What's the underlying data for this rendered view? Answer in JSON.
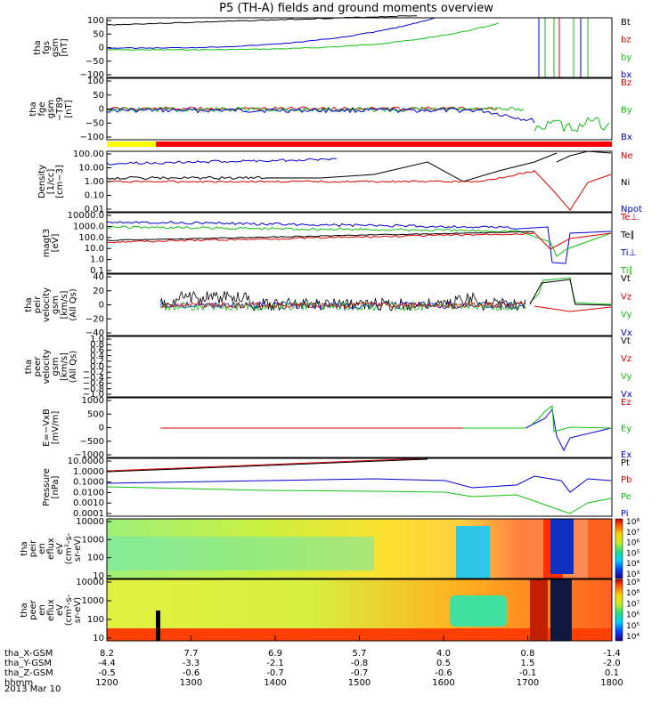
{
  "title": "P5 (TH-A) fields and ground moments overview",
  "date_label": "2013 Mar 10",
  "orbit_rows": [
    {
      "name": "tha_X-GSM",
      "values": [
        "8.2",
        "7.7",
        "6.9",
        "5.7",
        "4.0",
        "0.8",
        "-1.4"
      ]
    },
    {
      "name": "tha_Y-GSM",
      "values": [
        "-4.4",
        "-3.3",
        "-2.1",
        "-0.8",
        "0.5",
        "1.5",
        "-2.0"
      ]
    },
    {
      "name": "tha_Z-GSM",
      "values": [
        "-0.5",
        "-0.6",
        "-0.7",
        "-0.7",
        "-0.6",
        "-0.1",
        "0.1"
      ]
    },
    {
      "name": "hhmm",
      "values": [
        "1200",
        "1300",
        "1400",
        "1500",
        "1600",
        "1700",
        "1800"
      ]
    }
  ],
  "colors": {
    "black": "#000000",
    "red": "#e00000",
    "green": "#10c010",
    "blue": "#0000d0",
    "yellow": "#ffff00"
  },
  "chart_data": [
    {
      "type": "line",
      "panel": "fgs",
      "ylabel": [
        "tha",
        "fgs",
        "gsm",
        "[nT]"
      ],
      "yticks": [
        "100",
        "50",
        "0",
        "−50",
        "−100"
      ],
      "ylim": [
        -100,
        100
      ],
      "series": [
        {
          "name": "Bt",
          "color": "black"
        },
        {
          "name": "bz",
          "color": "red"
        },
        {
          "name": "by",
          "color": "green"
        },
        {
          "name": "bx",
          "color": "blue"
        }
      ]
    },
    {
      "type": "line",
      "panel": "fge",
      "ylabel": [
        "tha",
        "fge",
        "gsm",
        "−T89",
        "[nT]"
      ],
      "yticks": [
        "100",
        "50",
        "0",
        "−50",
        "−100"
      ],
      "ylim": [
        -120,
        120
      ],
      "series": [
        {
          "name": "Bz",
          "color": "red"
        },
        {
          "name": "By",
          "color": "green"
        },
        {
          "name": "Bx",
          "color": "blue"
        }
      ]
    },
    {
      "type": "line",
      "panel": "density",
      "scale": "log",
      "ylabel": [
        "Density",
        "[1/cc]",
        "[cm−3]"
      ],
      "yticks": [
        "100.00",
        "10.00",
        "1.00",
        "0.10",
        "0.01"
      ],
      "series": [
        {
          "name": "Ne",
          "color": "red"
        },
        {
          "name": "Ni",
          "color": "black"
        },
        {
          "name": "Npot",
          "color": "blue"
        }
      ]
    },
    {
      "type": "line",
      "panel": "temperature",
      "scale": "log",
      "ylabel": [
        "magt3",
        "[eV]"
      ],
      "yticks": [
        "10000.0",
        "1000.0",
        "100.0",
        "10.0",
        "1.0",
        "0.1"
      ],
      "series": [
        {
          "name": "Te⊥",
          "color": "red"
        },
        {
          "name": "Te∥",
          "color": "black"
        },
        {
          "name": "Ti⊥",
          "color": "blue"
        },
        {
          "name": "Ti∥",
          "color": "green"
        }
      ]
    },
    {
      "type": "line",
      "panel": "peir_velocity",
      "ylabel": [
        "tha",
        "peir",
        "velocity",
        "gsm",
        "[km/s]",
        "(All Qs)"
      ],
      "yticks": [
        "40",
        "20",
        "0",
        "−20",
        "−40"
      ],
      "ylim": [
        -40,
        40
      ],
      "series": [
        {
          "name": "Vt",
          "color": "black"
        },
        {
          "name": "Vz",
          "color": "red"
        },
        {
          "name": "Vy",
          "color": "green"
        },
        {
          "name": "Vx",
          "color": "blue"
        }
      ]
    },
    {
      "type": "line",
      "panel": "peer_velocity",
      "ylabel": [
        "tha",
        "peer",
        "velocity",
        "gsm",
        "[km/s]",
        "(All Qs)"
      ],
      "yticks": [
        "1.0",
        "0.8",
        "0.6",
        "0.4",
        "0.2",
        "0.0",
        "−0.2",
        "−0.4",
        "−0.6",
        "−0.8",
        "−1.0"
      ],
      "ylim": [
        -1,
        1
      ],
      "series": [
        {
          "name": "Vt",
          "color": "black"
        },
        {
          "name": "Vz",
          "color": "red"
        },
        {
          "name": "Vy",
          "color": "green"
        },
        {
          "name": "Vx",
          "color": "blue"
        }
      ]
    },
    {
      "type": "line",
      "panel": "efield",
      "ylabel": [
        "E=−VxB",
        "[mV/m]"
      ],
      "yticks": [
        "1000",
        "500",
        "0",
        "−500",
        "−1000"
      ],
      "ylim": [
        -1000,
        1000
      ],
      "series": [
        {
          "name": "Ez",
          "color": "red"
        },
        {
          "name": "Ey",
          "color": "green"
        },
        {
          "name": "Ex",
          "color": "blue"
        }
      ]
    },
    {
      "type": "line",
      "panel": "pressure",
      "scale": "log",
      "ylabel": [
        "Pressure",
        "[nPa]"
      ],
      "yticks": [
        "10.0000",
        "1.0000",
        "0.1000",
        "0.0100",
        "0.0010",
        "0.0001"
      ],
      "series": [
        {
          "name": "Pt",
          "color": "black"
        },
        {
          "name": "Pb",
          "color": "red"
        },
        {
          "name": "Pe",
          "color": "green"
        },
        {
          "name": "Pi",
          "color": "blue"
        }
      ]
    },
    {
      "type": "heatmap",
      "panel": "peir_spec",
      "ylabel": [
        "tha",
        "peir",
        "en",
        "eflux",
        "eV",
        "(cm²-s-",
        "sr-eV)"
      ],
      "yticks": [
        "10000",
        "1000",
        "100",
        "10"
      ],
      "colorbar": [
        "10⁸",
        "10⁷",
        "10⁶",
        "10⁵",
        "10⁴",
        "10³"
      ]
    },
    {
      "type": "heatmap",
      "panel": "peer_spec",
      "ylabel": [
        "tha",
        "peer",
        "en",
        "eflux",
        "eV",
        "(cm²-s-",
        "sr-eV)"
      ],
      "yticks": [
        "10000",
        "1000",
        "100",
        "10"
      ],
      "colorbar": [
        "10⁹",
        "10⁸",
        "10⁷",
        "10⁶",
        "10⁵",
        "10⁴"
      ]
    }
  ]
}
